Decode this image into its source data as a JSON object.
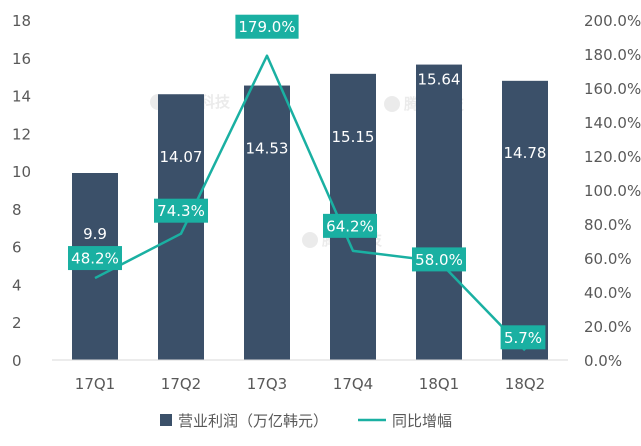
{
  "chart_data": {
    "type": "bar+line",
    "categories": [
      "17Q1",
      "17Q2",
      "17Q3",
      "17Q4",
      "18Q1",
      "18Q2"
    ],
    "series": [
      {
        "name": "营业利润（万亿韩元）",
        "type": "bar",
        "axis": "left",
        "values": [
          9.9,
          14.07,
          14.53,
          15.15,
          15.64,
          14.78
        ],
        "labels": [
          "9.9",
          "14.07",
          "14.53",
          "15.15",
          "15.64",
          "14.78"
        ],
        "color": "#3B5069"
      },
      {
        "name": "同比增幅",
        "type": "line",
        "axis": "right",
        "values": [
          48.2,
          74.3,
          179.0,
          64.2,
          58.0,
          5.7
        ],
        "labels": [
          "48.2%",
          "74.3%",
          "179.0%",
          "64.2%",
          "58.0%",
          "5.7%"
        ],
        "color": "#1AB0A2"
      }
    ],
    "y_left": {
      "min": 0,
      "max": 18,
      "step": 2,
      "ticks": [
        "0",
        "2",
        "4",
        "6",
        "8",
        "10",
        "12",
        "14",
        "16",
        "18"
      ]
    },
    "y_right": {
      "min": 0,
      "max": 200,
      "step": 20,
      "ticks": [
        "0.0%",
        "20.0%",
        "40.0%",
        "60.0%",
        "80.0%",
        "100.0%",
        "120.0%",
        "140.0%",
        "160.0%",
        "180.0%",
        "200.0%"
      ]
    },
    "grid": false,
    "legend_position": "bottom",
    "watermark": "腾讯科技"
  }
}
